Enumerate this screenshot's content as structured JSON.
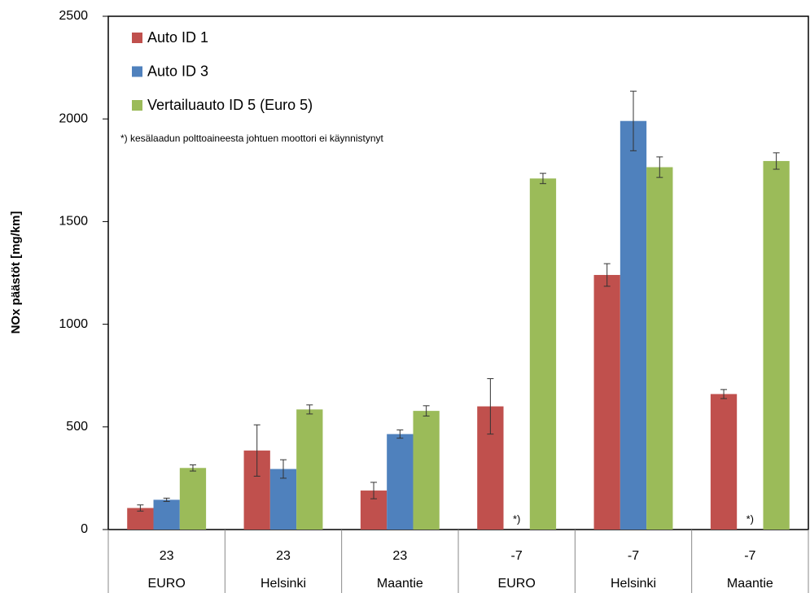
{
  "chart_data": {
    "type": "bar",
    "y_label": "NOx päästöt [mg/km]",
    "annotation": "*) kesälaadun polttoaineesta johtuen moottori ei käynnistynyt",
    "missing_label": "*)",
    "categories": [
      "EURO",
      "Helsinki",
      "Maantie",
      "EURO",
      "Helsinki",
      "Maantie"
    ],
    "category_groups": [
      "23",
      "23",
      "23",
      "-7",
      "-7",
      "-7"
    ],
    "series": [
      {
        "name": "Auto ID 1",
        "color": "#c0504d",
        "values": [
          105,
          385,
          190,
          600,
          1240,
          660
        ],
        "errors": [
          15,
          125,
          40,
          135,
          55,
          22
        ]
      },
      {
        "name": "Auto ID 3",
        "color": "#4f81bd",
        "values": [
          145,
          295,
          465,
          null,
          1990,
          null
        ],
        "errors": [
          8,
          45,
          20,
          null,
          145,
          null
        ]
      },
      {
        "name": "Vertailuauto ID 5 (Euro 5)",
        "color": "#9bbb59",
        "values": [
          300,
          585,
          578,
          1710,
          1765,
          1795
        ],
        "errors": [
          15,
          22,
          25,
          25,
          50,
          40
        ]
      }
    ],
    "ylim": [
      0,
      2500
    ],
    "yticks": [
      0,
      500,
      1000,
      1500,
      2000,
      2500
    ],
    "grid": false,
    "legend": "upper left"
  }
}
